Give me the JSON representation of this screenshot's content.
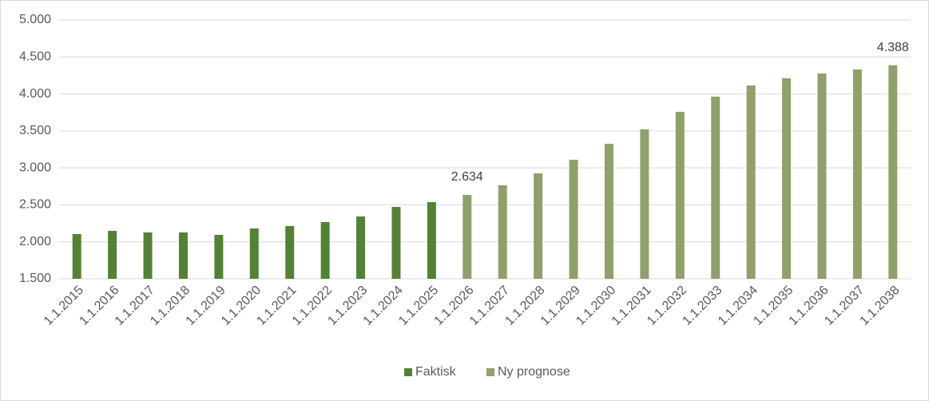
{
  "chart_data": {
    "type": "bar",
    "categories": [
      "1.1.2015",
      "1.1.2016",
      "1.1.2017",
      "1.1.2018",
      "1.1.2019",
      "1.1.2020",
      "1.1.2021",
      "1.1.2022",
      "1.1.2023",
      "1.1.2024",
      "1.1.2025",
      "1.1.2026",
      "1.1.2027",
      "1.1.2028",
      "1.1.2029",
      "1.1.2030",
      "1.1.2031",
      "1.1.2032",
      "1.1.2033",
      "1.1.2034",
      "1.1.2035",
      "1.1.2036",
      "1.1.2037",
      "1.1.2038"
    ],
    "series": [
      {
        "name": "Faktisk",
        "color": "#548235",
        "values": [
          2105,
          2148,
          2127,
          2127,
          2094,
          2181,
          2213,
          2267,
          2343,
          2472,
          2537,
          null,
          null,
          null,
          null,
          null,
          null,
          null,
          null,
          null,
          null,
          null,
          null,
          null
        ]
      },
      {
        "name": "Ny prognose",
        "color": "#8fa06a",
        "values": [
          null,
          null,
          null,
          null,
          null,
          null,
          null,
          null,
          null,
          null,
          null,
          2634,
          2764,
          2926,
          3110,
          3326,
          3520,
          3758,
          3963,
          4114,
          4211,
          4276,
          4330,
          4388
        ],
        "value_labels": [
          null,
          null,
          null,
          null,
          null,
          null,
          null,
          null,
          null,
          null,
          null,
          "2.634",
          null,
          null,
          null,
          null,
          null,
          null,
          null,
          null,
          null,
          null,
          null,
          "4.388"
        ]
      }
    ],
    "ylim": [
      1500,
      5000
    ],
    "yticks": [
      {
        "value": 1500,
        "label": "1.500"
      },
      {
        "value": 2000,
        "label": "2.000"
      },
      {
        "value": 2500,
        "label": "2.500"
      },
      {
        "value": 3000,
        "label": "3.000"
      },
      {
        "value": 3500,
        "label": "3.500"
      },
      {
        "value": 4000,
        "label": "4.000"
      },
      {
        "value": 4500,
        "label": "4.500"
      },
      {
        "value": 5000,
        "label": "5.000"
      }
    ],
    "grid": true,
    "legend": "bottom"
  }
}
